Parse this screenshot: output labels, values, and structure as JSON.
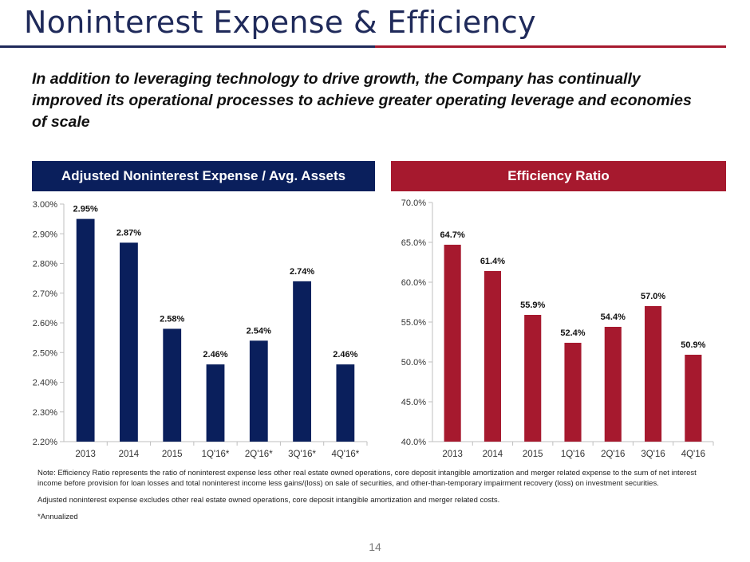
{
  "header": {
    "title": "Noninterest Expense & Efficiency",
    "intro": "In addition to leveraging technology to drive growth, the Company has continually improved its operational processes to achieve greater operating leverage and economies of scale"
  },
  "chart_data": [
    {
      "type": "bar",
      "title": "Adjusted Noninterest Expense / Avg. Assets",
      "categories": [
        "2013",
        "2014",
        "2015",
        "1Q'16*",
        "2Q'16*",
        "3Q'16*",
        "4Q'16*"
      ],
      "values": [
        2.95,
        2.87,
        2.58,
        2.46,
        2.54,
        2.74,
        2.46
      ],
      "value_labels": [
        "2.95%",
        "2.87%",
        "2.58%",
        "2.46%",
        "2.54%",
        "2.74%",
        "2.46%"
      ],
      "ylim": [
        2.2,
        3.0
      ],
      "yticks": [
        2.2,
        2.3,
        2.4,
        2.5,
        2.6,
        2.7,
        2.8,
        2.9,
        3.0
      ],
      "ytick_labels": [
        "2.20%",
        "2.30%",
        "2.40%",
        "2.50%",
        "2.60%",
        "2.70%",
        "2.80%",
        "2.90%",
        "3.00%"
      ],
      "xlabel": "",
      "ylabel": "",
      "grid": false,
      "color": "#0a1f5c"
    },
    {
      "type": "bar",
      "title": "Efficiency Ratio",
      "categories": [
        "2013",
        "2014",
        "2015",
        "1Q'16",
        "2Q'16",
        "3Q'16",
        "4Q'16"
      ],
      "values": [
        64.7,
        61.4,
        55.9,
        52.4,
        54.4,
        57.0,
        50.9
      ],
      "value_labels": [
        "64.7%",
        "61.4%",
        "55.9%",
        "52.4%",
        "54.4%",
        "57.0%",
        "50.9%"
      ],
      "ylim": [
        40.0,
        70.0
      ],
      "yticks": [
        40,
        45,
        50,
        55,
        60,
        65,
        70
      ],
      "ytick_labels": [
        "40.0%",
        "45.0%",
        "50.0%",
        "55.0%",
        "60.0%",
        "65.0%",
        "70.0%"
      ],
      "xlabel": "",
      "ylabel": "",
      "grid": false,
      "color": "#a6192e"
    }
  ],
  "notes": [
    "Note: Efficiency Ratio represents the ratio of noninterest expense less other real estate owned operations, core deposit intangible amortization and merger related expense to the sum of net interest income before provision for loan losses and total noninterest income less gains/(loss) on sale of securities, and other-than-temporary impairment recovery (loss) on investment securities.",
    "Adjusted noninterest expense excludes other real estate owned operations, core deposit intangible amortization and merger related costs.",
    "*Annualized"
  ],
  "page_number": "14"
}
